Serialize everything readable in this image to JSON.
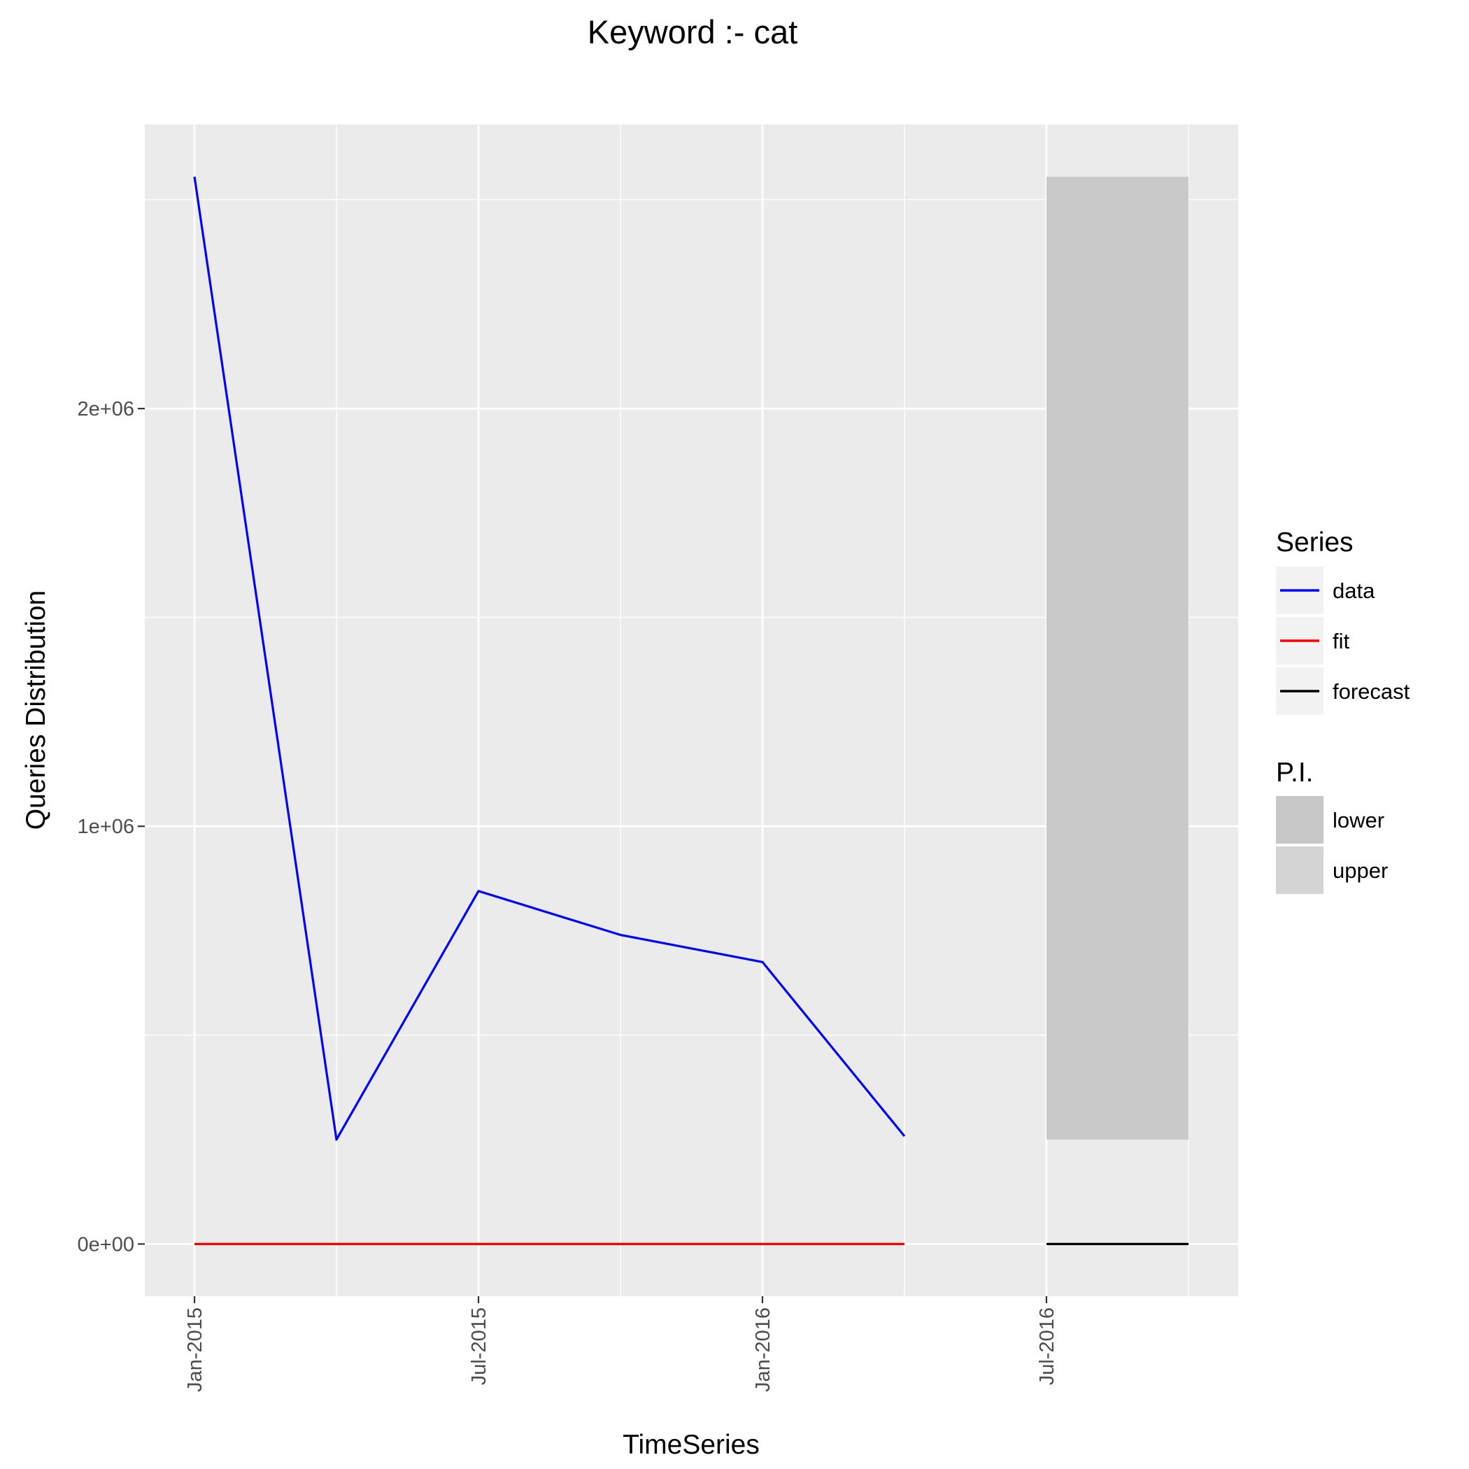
{
  "chart_data": {
    "type": "line",
    "title": "Keyword :- cat",
    "xlabel": "TimeSeries",
    "ylabel": "Queries Distribution",
    "x_ticks": [
      {
        "label": "Jan-2015",
        "x": 0
      },
      {
        "label": "Jul-2015",
        "x": 6
      },
      {
        "label": "Jan-2016",
        "x": 12
      },
      {
        "label": "Jul-2016",
        "x": 18
      }
    ],
    "x_months": [
      "Jan-2015",
      "Apr-2015",
      "Jul-2015",
      "Oct-2015",
      "Jan-2016",
      "Apr-2016",
      "Jul-2016",
      "Oct-2016"
    ],
    "xlim": [
      -1.05,
      22.05
    ],
    "y_ticks": [
      {
        "label": "0e+00",
        "y": 0
      },
      {
        "label": "1e+06",
        "y": 1000000
      },
      {
        "label": "2e+06",
        "y": 2000000
      }
    ],
    "ylim": [
      -125000,
      2680000
    ],
    "grid": true,
    "series": [
      {
        "name": "data",
        "color": "#0000ff",
        "points": [
          {
            "x": "Jan-2015",
            "y": 2555000
          },
          {
            "x": "Apr-2015",
            "y": 250000
          },
          {
            "x": "Jul-2015",
            "y": 845000
          },
          {
            "x": "Oct-2015",
            "y": 740000
          },
          {
            "x": "Jan-2016",
            "y": 675000
          },
          {
            "x": "Apr-2016",
            "y": 258000
          }
        ]
      },
      {
        "name": "fit",
        "color": "#ff0000",
        "points": [
          {
            "x": "Jan-2015",
            "y": 0
          },
          {
            "x": "Apr-2015",
            "y": 0
          },
          {
            "x": "Jul-2015",
            "y": 0
          },
          {
            "x": "Oct-2015",
            "y": 0
          },
          {
            "x": "Jan-2016",
            "y": 0
          },
          {
            "x": "Apr-2016",
            "y": 0
          }
        ]
      },
      {
        "name": "forecast",
        "color": "#000000",
        "points": [
          {
            "x": "Jul-2016",
            "y": 0
          },
          {
            "x": "Oct-2016",
            "y": 0
          }
        ]
      }
    ],
    "prediction_interval": {
      "x_start": "Jul-2016",
      "x_end": "Oct-2016",
      "lower": 250000,
      "upper": 2555000
    },
    "legend": {
      "position": "right",
      "series_title": "Series",
      "series_entries": [
        {
          "label": "data",
          "color": "#0000ff"
        },
        {
          "label": "fit",
          "color": "#ff0000"
        },
        {
          "label": "forecast",
          "color": "#000000"
        }
      ],
      "pi_title": "P.I.",
      "pi_entries": [
        {
          "label": "lower",
          "color": "#c7c7c7"
        },
        {
          "label": "upper",
          "color": "#d4d4d4"
        }
      ]
    }
  }
}
